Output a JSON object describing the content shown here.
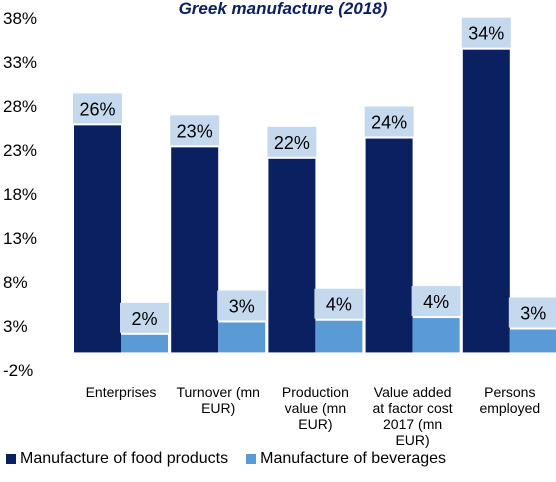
{
  "chart_data": {
    "type": "bar",
    "title": "Greek manufacture (2018)",
    "categories": [
      [
        "Enterprises"
      ],
      [
        "Turnover (mn",
        "EUR)"
      ],
      [
        "Production",
        "value (mn",
        "EUR)"
      ],
      [
        "Value added",
        "at factor cost",
        "2017 (mn",
        "EUR)"
      ],
      [
        "Persons",
        "employed"
      ]
    ],
    "series": [
      {
        "name": "Manufacture of food products",
        "color": "#0b2060",
        "values": [
          25.8,
          23.3,
          22.0,
          24.3,
          34.4
        ],
        "labels": [
          "26%",
          "23%",
          "22%",
          "24%",
          "34%"
        ]
      },
      {
        "name": "Manufacture of beverages",
        "color": "#5b9bd5",
        "values": [
          2.0,
          3.4,
          3.6,
          3.9,
          2.6
        ],
        "labels": [
          "2%",
          "3%",
          "4%",
          "4%",
          "3%"
        ]
      }
    ],
    "ylim": [
      -2,
      38
    ],
    "yticks": [
      "38%",
      "33%",
      "28%",
      "23%",
      "18%",
      "13%",
      "8%",
      "3%",
      "-2%"
    ],
    "ytick_values": [
      38,
      33,
      28,
      23,
      18,
      13,
      8,
      3,
      -2
    ],
    "grid": false,
    "legend_position": "bottom",
    "label_box_color": "#c5d9ee"
  }
}
